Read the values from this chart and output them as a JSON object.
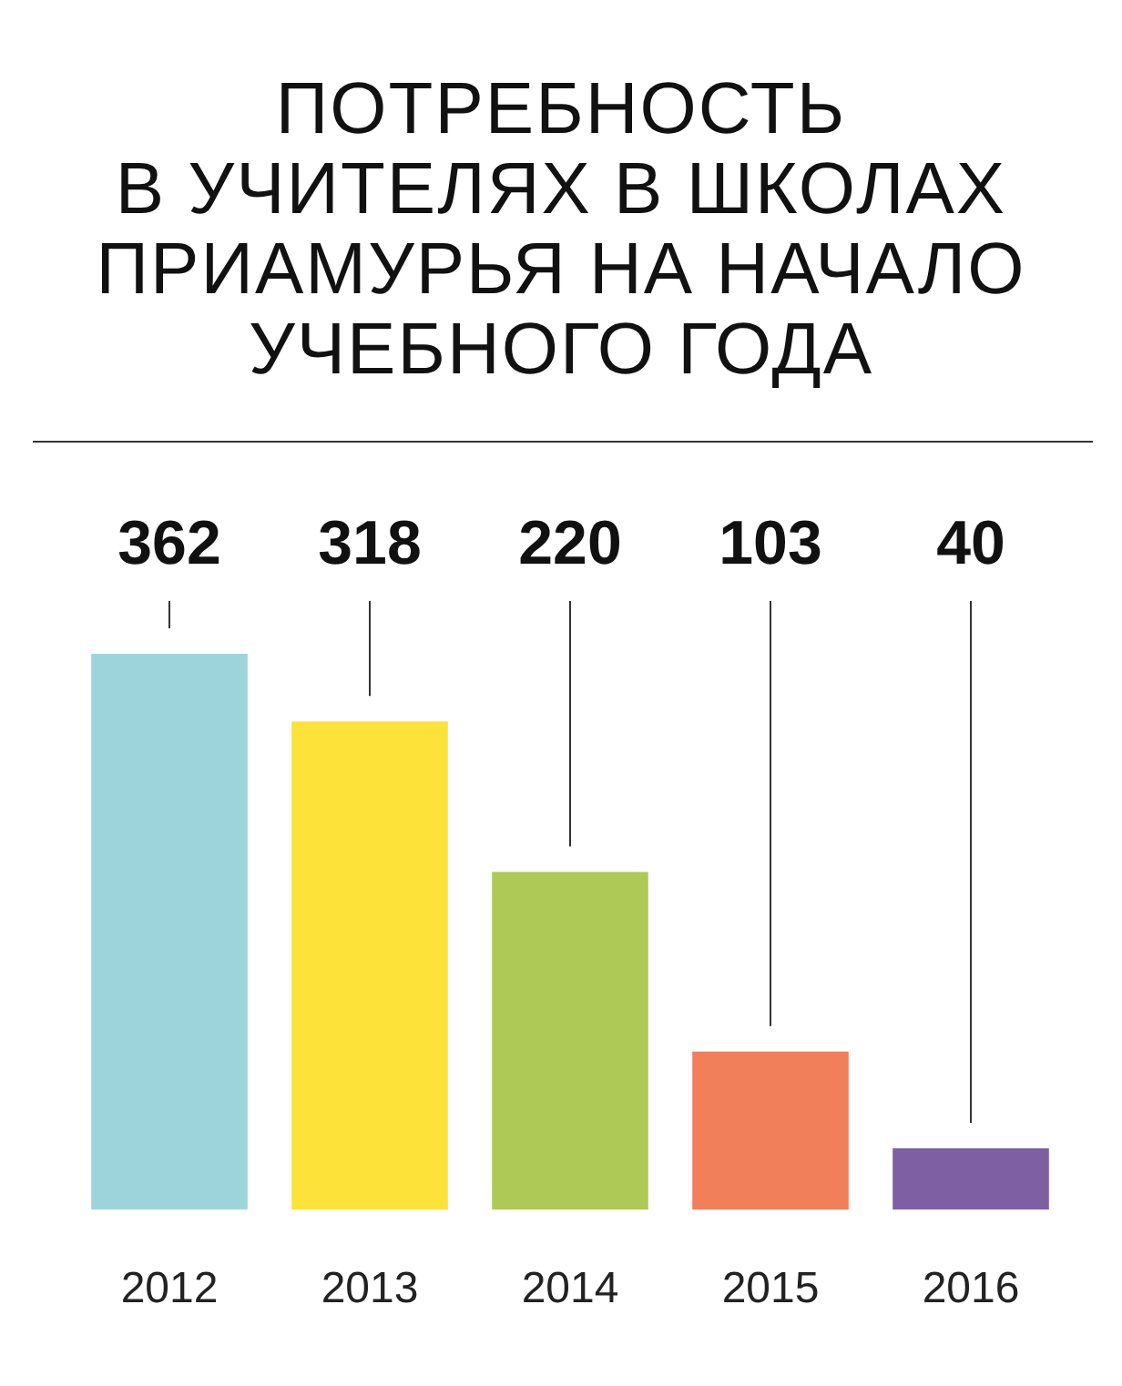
{
  "chart_data": {
    "type": "bar",
    "title": "ПОТРЕБНОСТЬ\nВ УЧИТЕЛЯХ В ШКОЛАХ\nПРИАМУРЬЯ НА НАЧАЛО\nУЧЕБНОГО ГОДА",
    "categories": [
      "2012",
      "2013",
      "2014",
      "2015",
      "2016"
    ],
    "values": [
      362,
      318,
      220,
      103,
      40
    ],
    "colors": [
      "#9dd4dc",
      "#fde23a",
      "#afc957",
      "#f07f5a",
      "#7e5fa4"
    ],
    "data_labels": true,
    "legend": false
  }
}
